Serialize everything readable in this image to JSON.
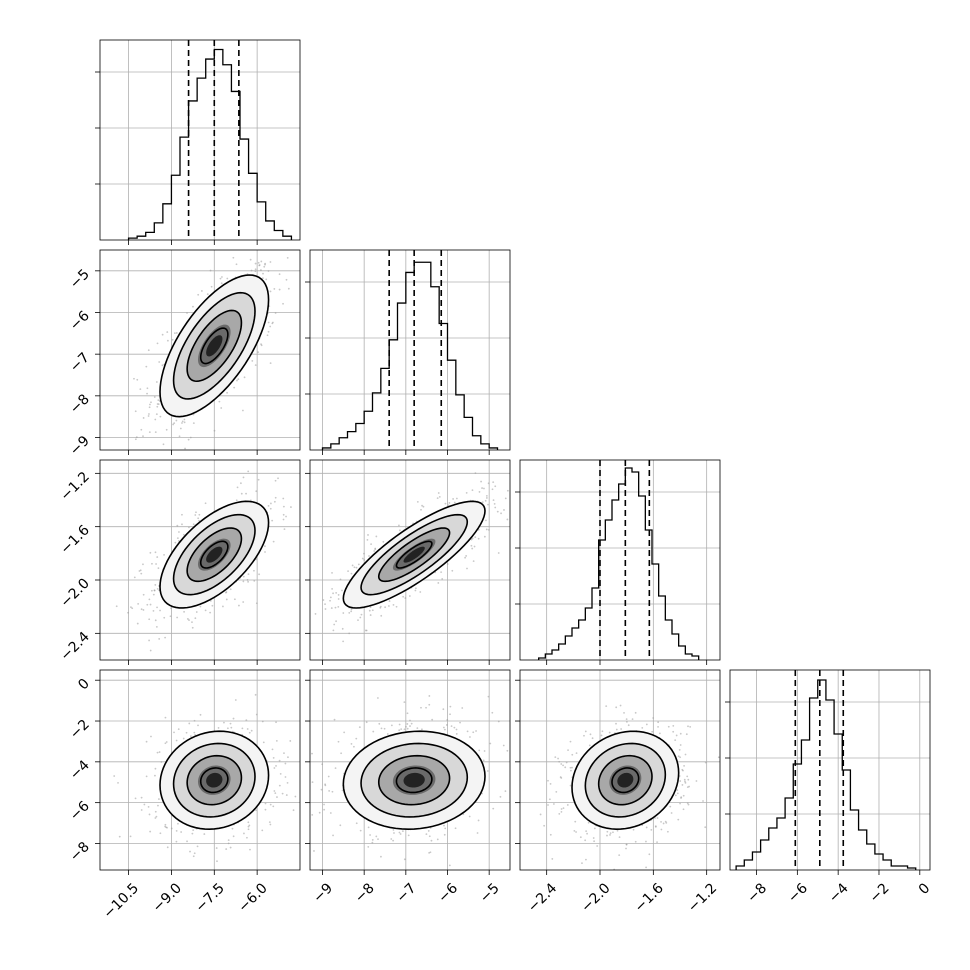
{
  "chart_data": {
    "type": "corner",
    "n_params": 4,
    "grid": true,
    "quantiles": [
      0.16,
      0.5,
      0.84
    ],
    "parameters": [
      {
        "index": 0,
        "range": [
          -11.5,
          -4.5
        ],
        "ticks": [
          {
            "value": -10.5,
            "label": "−10.5"
          },
          {
            "value": -9.0,
            "label": "−9.0"
          },
          {
            "value": -7.5,
            "label": "−7.5"
          },
          {
            "value": -6.0,
            "label": "−6.0"
          }
        ],
        "quantile_values": [
          -8.4,
          -7.5,
          -6.64
        ],
        "hist": {
          "bin_edges": [
            -10.5,
            -10.2,
            -9.9,
            -9.6,
            -9.3,
            -9.0,
            -8.7,
            -8.4,
            -8.1,
            -7.8,
            -7.5,
            -7.2,
            -6.9,
            -6.6,
            -6.3,
            -6.0,
            -5.7,
            -5.4,
            -5.1,
            -4.8
          ],
          "counts": [
            1,
            2,
            4,
            9,
            19,
            34,
            54,
            73,
            85,
            95,
            100,
            92,
            78,
            53,
            35,
            20,
            10,
            5,
            2
          ],
          "ymax": 105
        }
      },
      {
        "index": 1,
        "range": [
          -9.3,
          -4.5
        ],
        "ticks": [
          {
            "value": -9,
            "label": "−9"
          },
          {
            "value": -8,
            "label": "−8"
          },
          {
            "value": -7,
            "label": "−7"
          },
          {
            "value": -6,
            "label": "−6"
          },
          {
            "value": -5,
            "label": "−5"
          }
        ],
        "quantile_values": [
          -7.4,
          -6.8,
          -6.15
        ],
        "hist": {
          "bin_edges": [
            -9.0,
            -8.8,
            -8.6,
            -8.4,
            -8.2,
            -8.0,
            -7.8,
            -7.6,
            -7.4,
            -7.2,
            -7.0,
            -6.8,
            -6.6,
            -6.4,
            -6.2,
            -6.0,
            -5.8,
            -5.6,
            -5.4,
            -5.2,
            -5.0,
            -4.8
          ],
          "counts": [
            1,
            3,
            6,
            9,
            13,
            19,
            28,
            40,
            54,
            72,
            87,
            92,
            92,
            80,
            62,
            44,
            27,
            16,
            7,
            3,
            1
          ],
          "ymax": 98
        }
      },
      {
        "index": 2,
        "range": [
          -2.6,
          -1.1
        ],
        "ticks": [
          {
            "value": -2.4,
            "label": "−2.4"
          },
          {
            "value": -2.0,
            "label": "−2.0"
          },
          {
            "value": -1.6,
            "label": "−1.6"
          },
          {
            "value": -1.2,
            "label": "−1.2"
          }
        ],
        "quantile_values": [
          -2.0,
          -1.81,
          -1.63
        ],
        "hist": {
          "bin_edges": [
            -2.46,
            -2.41,
            -2.36,
            -2.31,
            -2.26,
            -2.21,
            -2.16,
            -2.11,
            -2.06,
            -2.01,
            -1.96,
            -1.91,
            -1.86,
            -1.81,
            -1.76,
            -1.71,
            -1.66,
            -1.61,
            -1.56,
            -1.51,
            -1.46,
            -1.41,
            -1.36,
            -1.31,
            -1.26
          ],
          "counts": [
            1,
            3,
            5,
            8,
            12,
            16,
            20,
            26,
            36,
            60,
            70,
            80,
            88,
            96,
            94,
            82,
            65,
            48,
            32,
            20,
            13,
            7,
            3,
            2
          ],
          "ymax": 100
        }
      },
      {
        "index": 3,
        "range": [
          -9.3,
          0.5
        ],
        "ticks": [
          {
            "value": -8,
            "label": "−8"
          },
          {
            "value": -6,
            "label": "−6"
          },
          {
            "value": -4,
            "label": "−4"
          },
          {
            "value": -2,
            "label": "−2"
          },
          {
            "value": 0,
            "label": "0"
          }
        ],
        "quantile_values": [
          -6.1,
          -4.9,
          -3.75
        ],
        "hist": {
          "bin_edges": [
            -9.0,
            -8.6,
            -8.2,
            -7.8,
            -7.4,
            -7.0,
            -6.6,
            -6.2,
            -5.8,
            -5.4,
            -5.0,
            -4.6,
            -4.2,
            -3.8,
            -3.4,
            -3.0,
            -2.6,
            -2.2,
            -1.8,
            -1.4,
            -1.0,
            -0.6,
            -0.2
          ],
          "counts": [
            2,
            5,
            9,
            15,
            21,
            26,
            36,
            53,
            65,
            86,
            95,
            85,
            68,
            50,
            30,
            20,
            13,
            8,
            5,
            2,
            2,
            1
          ],
          "ymax": 100
        }
      }
    ],
    "pairs": [
      {
        "x": 0,
        "y": 1,
        "mean": [
          -7.5,
          -6.8
        ],
        "sd": [
          0.95,
          0.85
        ],
        "rho": 0.65,
        "n_points": 650
      },
      {
        "x": 0,
        "y": 2,
        "mean": [
          -7.5,
          -1.81
        ],
        "sd": [
          0.95,
          0.2
        ],
        "rho": 0.6,
        "n_points": 650
      },
      {
        "x": 1,
        "y": 2,
        "mean": [
          -6.8,
          -1.81
        ],
        "sd": [
          0.85,
          0.2
        ],
        "rho": 0.82,
        "n_points": 650
      },
      {
        "x": 0,
        "y": 3,
        "mean": [
          -7.5,
          -4.9
        ],
        "sd": [
          0.95,
          1.2
        ],
        "rho": 0.1,
        "n_points": 650
      },
      {
        "x": 1,
        "y": 3,
        "mean": [
          -6.8,
          -4.9
        ],
        "sd": [
          0.85,
          1.2
        ],
        "rho": 0.08,
        "n_points": 650
      },
      {
        "x": 2,
        "y": 3,
        "mean": [
          -1.81,
          -4.9
        ],
        "sd": [
          0.2,
          1.2
        ],
        "rho": 0.15,
        "n_points": 650
      }
    ]
  }
}
